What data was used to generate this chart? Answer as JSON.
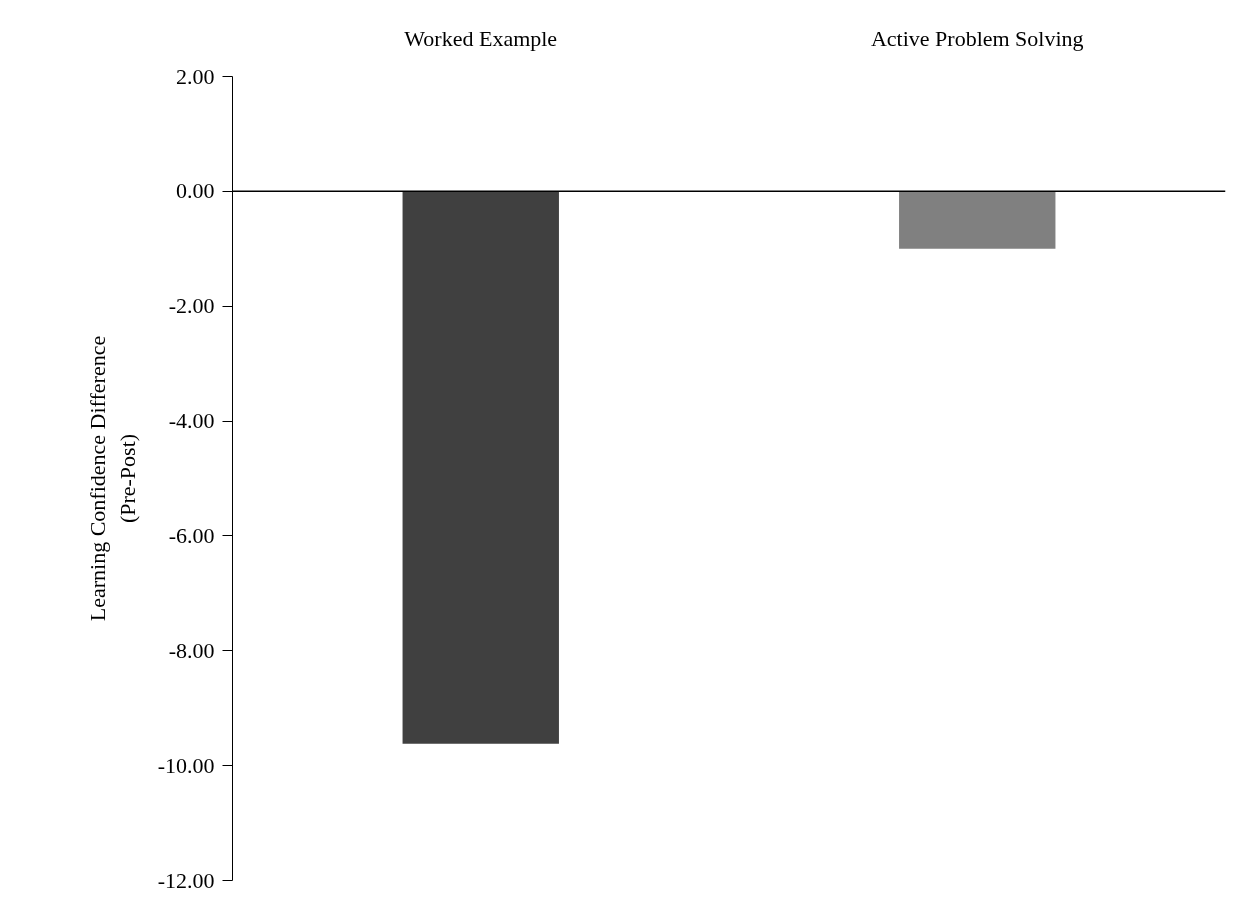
{
  "chart_data": {
    "type": "bar",
    "ylabel": "Learning Confidence Difference\n(Pre-Post)",
    "categories": [
      "Worked Example",
      "Active Problem Solving"
    ],
    "series": [
      {
        "color": "#404040",
        "values": [
          -9.62,
          null
        ]
      },
      {
        "color": "#808080",
        "values": [
          null,
          -1.0
        ]
      }
    ],
    "ylim": [
      -12,
      2
    ],
    "yticks": [
      {
        "value": 2,
        "label": "2.00"
      },
      {
        "value": 0,
        "label": "0.00"
      },
      {
        "value": -2,
        "label": "-2.00"
      },
      {
        "value": -4,
        "label": "-4.00"
      },
      {
        "value": -6,
        "label": "-6.00"
      },
      {
        "value": -8,
        "label": "-8.00"
      },
      {
        "value": -10,
        "label": "-10.00"
      },
      {
        "value": -12,
        "label": "-12.00"
      }
    ],
    "ref_lines": [
      {
        "axis": "y",
        "value": 0,
        "color": "#000000"
      }
    ]
  }
}
